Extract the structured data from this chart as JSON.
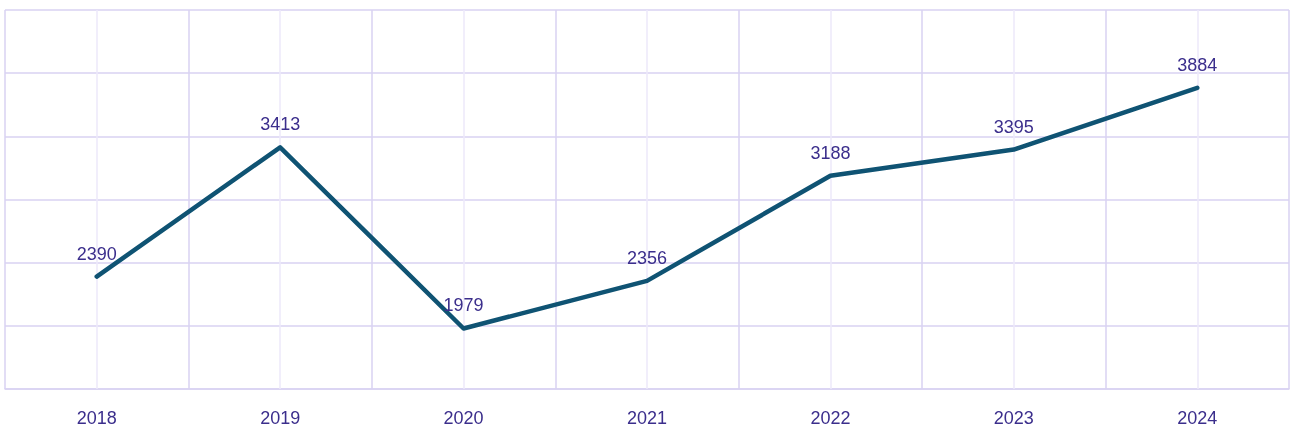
{
  "chart_data": {
    "type": "line",
    "categories": [
      "2018",
      "2019",
      "2020",
      "2021",
      "2022",
      "2023",
      "2024"
    ],
    "series": [
      {
        "color": "#0f5373",
        "values": [
          2390,
          3413,
          1979,
          2356,
          3188,
          3395,
          3884
        ]
      }
    ],
    "ylim": [
      1500,
      4500
    ],
    "yticks": [
      {
        "value": 1500,
        "label": null
      },
      {
        "value": 2000,
        "label": null
      },
      {
        "value": 2500,
        "label": null
      },
      {
        "value": 3000,
        "label": null
      },
      {
        "value": 3500,
        "label": null
      },
      {
        "value": 4000,
        "label": null
      },
      {
        "value": 4500,
        "label": null
      }
    ],
    "tick_labels": "x",
    "grid": true,
    "data_labels": true,
    "marker": "none",
    "line_style": "solid"
  }
}
